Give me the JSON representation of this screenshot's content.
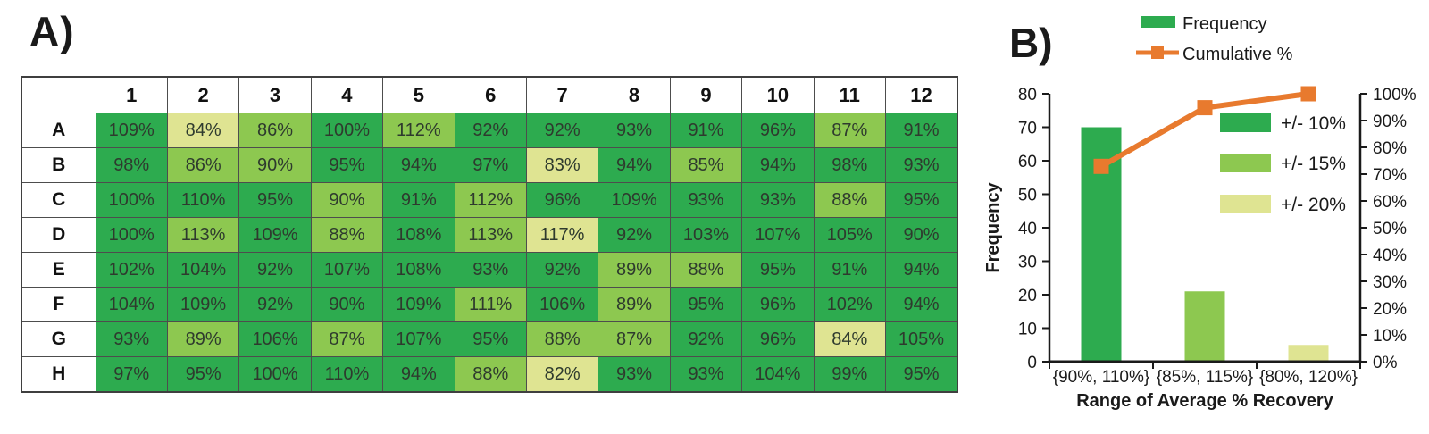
{
  "colors": {
    "g10": "#2DAB4F",
    "g15": "#8DC850",
    "g20": "#DFE492",
    "orange": "#E87A2E",
    "axis": "#1a1a1a"
  },
  "panel_a": {
    "label": "A)",
    "plate": {
      "col_headers": [
        "1",
        "2",
        "3",
        "4",
        "5",
        "6",
        "7",
        "8",
        "9",
        "10",
        "11",
        "12"
      ],
      "rows": [
        {
          "label": "A",
          "values": [
            "109%",
            "84%",
            "86%",
            "100%",
            "112%",
            "92%",
            "92%",
            "93%",
            "91%",
            "96%",
            "87%",
            "91%"
          ],
          "cats": [
            "g10",
            "g20",
            "g15",
            "g10",
            "g15",
            "g10",
            "g10",
            "g10",
            "g10",
            "g10",
            "g15",
            "g10"
          ]
        },
        {
          "label": "B",
          "values": [
            "98%",
            "86%",
            "90%",
            "95%",
            "94%",
            "97%",
            "83%",
            "94%",
            "85%",
            "94%",
            "98%",
            "93%"
          ],
          "cats": [
            "g10",
            "g15",
            "g15",
            "g10",
            "g10",
            "g10",
            "g20",
            "g10",
            "g15",
            "g10",
            "g10",
            "g10"
          ]
        },
        {
          "label": "C",
          "values": [
            "100%",
            "110%",
            "95%",
            "90%",
            "91%",
            "112%",
            "96%",
            "109%",
            "93%",
            "93%",
            "88%",
            "95%"
          ],
          "cats": [
            "g10",
            "g10",
            "g10",
            "g15",
            "g10",
            "g15",
            "g10",
            "g10",
            "g10",
            "g10",
            "g15",
            "g10"
          ]
        },
        {
          "label": "D",
          "values": [
            "100%",
            "113%",
            "109%",
            "88%",
            "108%",
            "113%",
            "117%",
            "92%",
            "103%",
            "107%",
            "105%",
            "90%"
          ],
          "cats": [
            "g10",
            "g15",
            "g10",
            "g15",
            "g10",
            "g15",
            "g20",
            "g10",
            "g10",
            "g10",
            "g10",
            "g10"
          ]
        },
        {
          "label": "E",
          "values": [
            "102%",
            "104%",
            "92%",
            "107%",
            "108%",
            "93%",
            "92%",
            "89%",
            "88%",
            "95%",
            "91%",
            "94%"
          ],
          "cats": [
            "g10",
            "g10",
            "g10",
            "g10",
            "g10",
            "g10",
            "g10",
            "g15",
            "g15",
            "g10",
            "g10",
            "g10"
          ]
        },
        {
          "label": "F",
          "values": [
            "104%",
            "109%",
            "92%",
            "90%",
            "109%",
            "111%",
            "106%",
            "89%",
            "95%",
            "96%",
            "102%",
            "94%"
          ],
          "cats": [
            "g10",
            "g10",
            "g10",
            "g10",
            "g10",
            "g15",
            "g10",
            "g15",
            "g10",
            "g10",
            "g10",
            "g10"
          ]
        },
        {
          "label": "G",
          "values": [
            "93%",
            "89%",
            "106%",
            "87%",
            "107%",
            "95%",
            "88%",
            "87%",
            "92%",
            "96%",
            "84%",
            "105%"
          ],
          "cats": [
            "g10",
            "g15",
            "g10",
            "g15",
            "g10",
            "g10",
            "g15",
            "g15",
            "g10",
            "g10",
            "g20",
            "g10"
          ]
        },
        {
          "label": "H",
          "values": [
            "97%",
            "95%",
            "100%",
            "110%",
            "94%",
            "88%",
            "82%",
            "93%",
            "93%",
            "104%",
            "99%",
            "95%"
          ],
          "cats": [
            "g10",
            "g10",
            "g10",
            "g10",
            "g10",
            "g15",
            "g20",
            "g10",
            "g10",
            "g10",
            "g10",
            "g10"
          ]
        }
      ]
    }
  },
  "panel_b": {
    "label": "B)"
  },
  "chart_data": {
    "type": "bar",
    "subtype": "pareto-bar-plus-line",
    "title": "",
    "categories": [
      "{90%, 110%}",
      "{85%, 115%}",
      "{80%, 120%}"
    ],
    "series": [
      {
        "name": "Frequency",
        "type": "bar",
        "axis": "left",
        "values": [
          70,
          21,
          5
        ],
        "color_keys": [
          "g10",
          "g15",
          "g20"
        ]
      },
      {
        "name": "Cumulative %",
        "type": "line",
        "axis": "right",
        "values": [
          72.9,
          94.8,
          100
        ],
        "color_key": "orange",
        "marker": "square"
      }
    ],
    "left_axis": {
      "label": "Frequency",
      "min": 0,
      "max": 80,
      "ticks": [
        "0",
        "10",
        "20",
        "30",
        "40",
        "50",
        "60",
        "70",
        "80"
      ]
    },
    "right_axis": {
      "label": "",
      "min": 0,
      "max": 100,
      "ticks": [
        "0%",
        "10%",
        "20%",
        "30%",
        "40%",
        "50%",
        "60%",
        "70%",
        "80%",
        "90%",
        "100%"
      ]
    },
    "xlabel": "Range of Average % Recovery",
    "legend": [
      {
        "label": "Frequency",
        "swatch": "bar",
        "color_key": "g10"
      },
      {
        "label": "Cumulative %",
        "swatch": "line-marker",
        "color_key": "orange"
      }
    ],
    "range_legend": [
      {
        "label": "+/- 10%",
        "color_key": "g10"
      },
      {
        "label": "+/- 15%",
        "color_key": "g15"
      },
      {
        "label": "+/- 20%",
        "color_key": "g20"
      }
    ],
    "grid": false,
    "legend_position": "top"
  }
}
